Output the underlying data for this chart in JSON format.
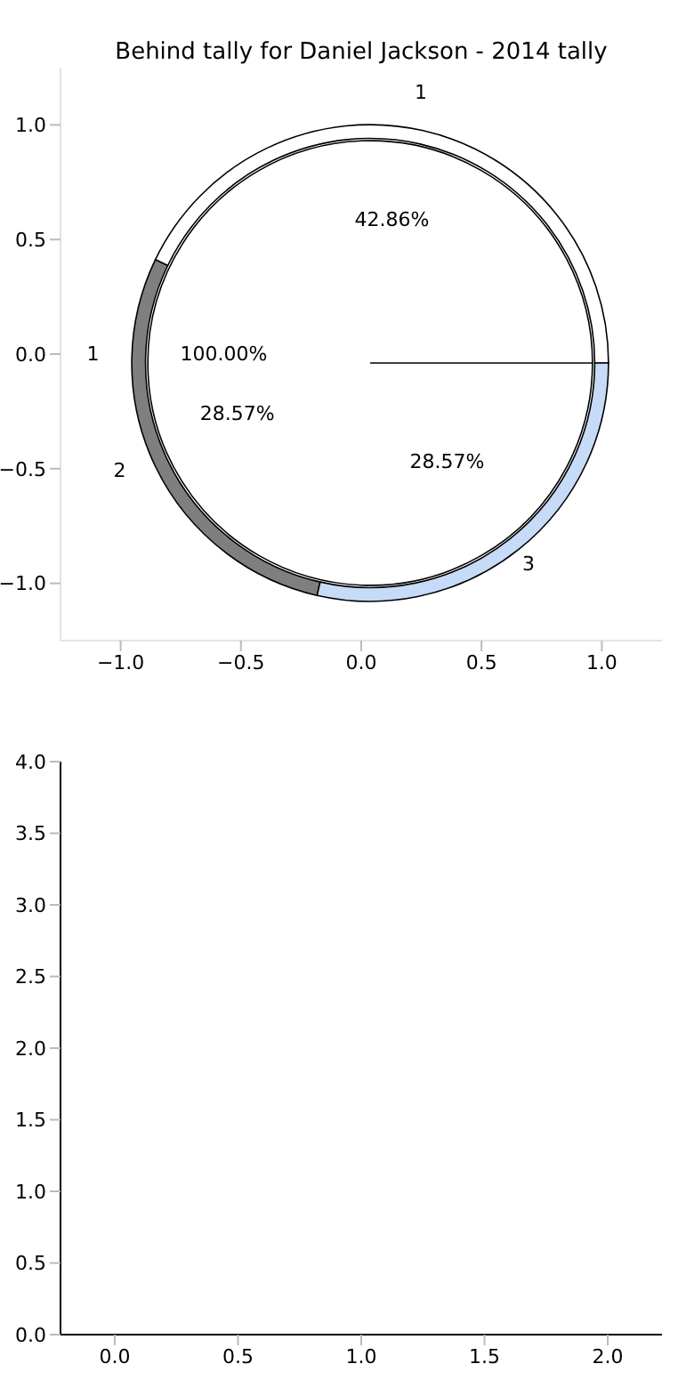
{
  "chart_data": [
    {
      "type": "pie",
      "title": "Behind tally for Daniel Jackson - 2014 tally",
      "categories": [
        "1"
      ],
      "values": [
        100
      ],
      "colors": [
        "#ffffff"
      ],
      "value_labels": [
        "100.00%"
      ]
    },
    {
      "type": "donut",
      "categories": [
        "1",
        "2",
        "3"
      ],
      "values": [
        42.86,
        28.57,
        28.57
      ],
      "colors": [
        "#ffffff",
        "#7f7f7f",
        "#c6dbf7"
      ],
      "value_labels": [
        "42.86%",
        "28.57%",
        "28.57%"
      ]
    },
    {
      "type": "scatter",
      "xlim": [
        -1.25,
        1.25
      ],
      "ylim": [
        -1.25,
        1.25
      ],
      "xticks": [
        {
          "value": -1,
          "label": "−1.0"
        },
        {
          "value": -0.5,
          "label": "−0.5"
        },
        {
          "value": 0,
          "label": "0.0"
        },
        {
          "value": 0.5,
          "label": "0.5"
        },
        {
          "value": 1,
          "label": "1.0"
        }
      ],
      "yticks": [
        {
          "value": -1,
          "label": "−1.0"
        },
        {
          "value": -0.5,
          "label": "−0.5"
        },
        {
          "value": 0,
          "label": "0.0"
        },
        {
          "value": 0.5,
          "label": "0.5"
        },
        {
          "value": 1,
          "label": "1.0"
        }
      ]
    },
    {
      "type": "scatter",
      "xlim": [
        -0.22,
        2.22
      ],
      "ylim": [
        0,
        4
      ],
      "xticks": [
        {
          "value": 0,
          "label": "0.0"
        },
        {
          "value": 0.5,
          "label": "0.5"
        },
        {
          "value": 1,
          "label": "1.0"
        },
        {
          "value": 1.5,
          "label": "1.5"
        },
        {
          "value": 2,
          "label": "2.0"
        }
      ],
      "yticks": [
        {
          "value": 0,
          "label": "0.0"
        },
        {
          "value": 0.5,
          "label": "0.5"
        },
        {
          "value": 1,
          "label": "1.0"
        },
        {
          "value": 1.5,
          "label": "1.5"
        },
        {
          "value": 2,
          "label": "2.0"
        },
        {
          "value": 2.5,
          "label": "2.5"
        },
        {
          "value": 3,
          "label": "3.0"
        },
        {
          "value": 3.5,
          "label": "3.5"
        },
        {
          "value": 4,
          "label": "4.0"
        }
      ]
    }
  ]
}
